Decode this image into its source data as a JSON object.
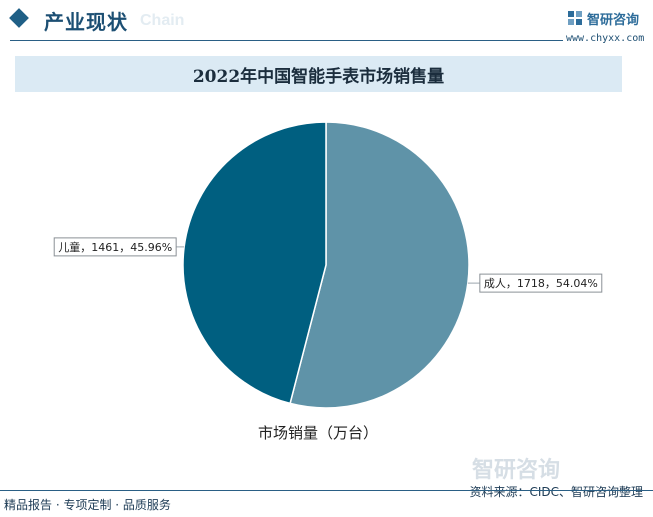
{
  "header": {
    "section_title": "产业现状",
    "bg_word": "Chain",
    "brand_name": "智研咨询",
    "brand_url": "www.chyxx.com"
  },
  "chart_data": {
    "type": "pie",
    "title": "2022年中国智能手表市场销售量",
    "legend_title": "市场销量（万台）",
    "slices": [
      {
        "name": "成人",
        "value": 1718,
        "percent": "54.04%",
        "label": "成人，1718，54.04%",
        "color": "#5f93a8"
      },
      {
        "name": "儿童",
        "value": 1461,
        "percent": "45.96%",
        "label": "儿童，1461，45.96%",
        "color": "#005f80"
      }
    ]
  },
  "footer": {
    "left_text": "精品报告 · 专项定制 · 品质服务",
    "source": "资料来源：CIDC、智研咨询整理",
    "watermark_logo": "智研咨询"
  }
}
